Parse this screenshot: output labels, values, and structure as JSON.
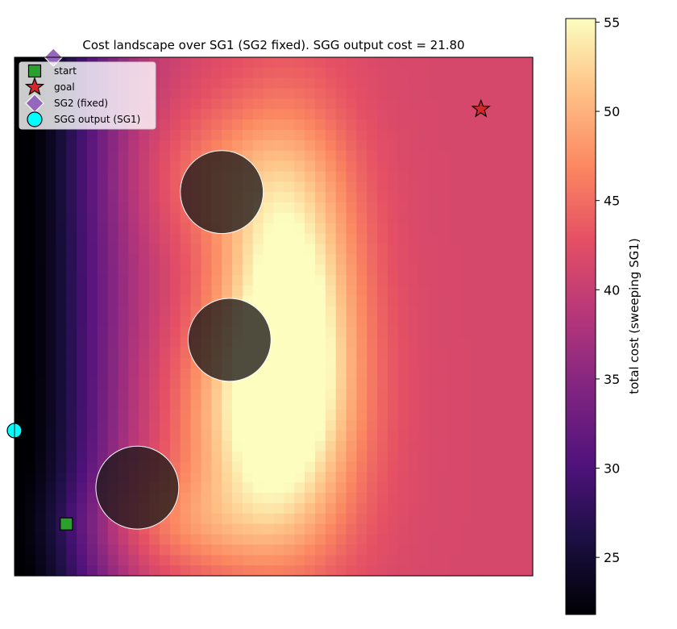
{
  "chart_data": {
    "type": "heatmap",
    "title": "Cost landscape over SG1 (SG2 fixed). SGG output cost = 21.80",
    "xlabel": "",
    "ylabel": "",
    "xlim": [
      0,
      1
    ],
    "ylim": [
      0,
      1
    ],
    "grid": false,
    "colormap": "magma",
    "colorbar": {
      "label": "total cost (sweeping SG1)",
      "range": [
        21.8,
        55.2
      ],
      "ticks": [
        25,
        30,
        35,
        40,
        45,
        50,
        55
      ]
    },
    "heatmap_model": {
      "resolution": 50,
      "base": 41.5,
      "left_dip": {
        "depth": 20.5,
        "width": 0.13
      },
      "peaks": [
        {
          "x": 0.53,
          "y": 0.5,
          "height": 16.0,
          "sx": 0.09,
          "sy": 0.24
        },
        {
          "x": 0.47,
          "y": 0.28,
          "height": 9.0,
          "sx": 0.12,
          "sy": 0.16
        },
        {
          "x": 0.4,
          "y": 0.77,
          "height": 4.0,
          "sx": 0.12,
          "sy": 0.1
        },
        {
          "x": 0.3,
          "y": 0.1,
          "height": 4.5,
          "sx": 0.16,
          "sy": 0.07
        }
      ]
    },
    "obstacles": [
      {
        "x": 0.4,
        "y": 0.74,
        "r": 0.08,
        "color": "#1e1a1a"
      },
      {
        "x": 0.415,
        "y": 0.455,
        "r": 0.08,
        "color": "#1e1a1a"
      },
      {
        "x": 0.237,
        "y": 0.17,
        "r": 0.08,
        "color": "#1e1a1a"
      }
    ],
    "markers": [
      {
        "name": "start",
        "shape": "square",
        "x": 0.1,
        "y": 0.1,
        "color": "#2ca02c"
      },
      {
        "name": "goal",
        "shape": "star",
        "x": 0.9,
        "y": 0.9,
        "color": "#d62728"
      },
      {
        "name": "SG2 (fixed)",
        "shape": "diamond",
        "x": 0.075,
        "y": 1.0,
        "color": "#9467bd"
      },
      {
        "name": "SGG output (SG1)",
        "shape": "circle",
        "x": 0.0,
        "y": 0.28,
        "color": "#00ffff"
      }
    ],
    "legend": {
      "placement": "top-left",
      "entries": [
        "start",
        "goal",
        "SG2 (fixed)",
        "SGG output (SG1)"
      ]
    }
  }
}
